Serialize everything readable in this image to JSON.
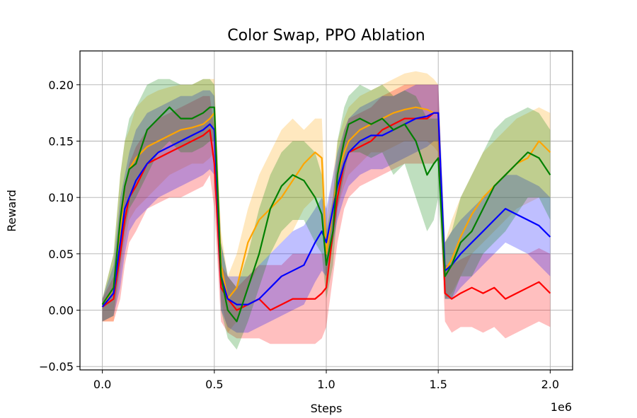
{
  "chart_data": {
    "type": "line",
    "title": "Color Swap, PPO Ablation",
    "xlabel": "Steps",
    "ylabel": "Reward",
    "x_offset_label": "1e6",
    "xlim": [
      -0.1,
      2.1
    ],
    "ylim": [
      -0.053,
      0.23
    ],
    "xticks": [
      0.0,
      0.5,
      1.0,
      1.5,
      2.0
    ],
    "xtick_labels": [
      "0.0",
      "0.5",
      "1.0",
      "1.5",
      "2.0"
    ],
    "yticks": [
      -0.05,
      0.0,
      0.05,
      0.1,
      0.15,
      0.2
    ],
    "ytick_labels": [
      "−0.05",
      "0.00",
      "0.05",
      "0.10",
      "0.15",
      "0.20"
    ],
    "grid": true,
    "legend": "none",
    "series": [
      {
        "color": "#ffa500",
        "x": [
          0.0,
          0.05,
          0.08,
          0.1,
          0.12,
          0.15,
          0.2,
          0.25,
          0.3,
          0.35,
          0.4,
          0.45,
          0.48,
          0.5,
          0.53,
          0.56,
          0.6,
          0.65,
          0.7,
          0.75,
          0.8,
          0.85,
          0.9,
          0.95,
          0.98,
          1.0,
          1.03,
          1.05,
          1.08,
          1.1,
          1.15,
          1.2,
          1.25,
          1.3,
          1.35,
          1.4,
          1.45,
          1.48,
          1.5,
          1.53,
          1.56,
          1.6,
          1.65,
          1.7,
          1.75,
          1.8,
          1.85,
          1.9,
          1.95,
          2.0
        ],
        "values": [
          0.003,
          0.02,
          0.07,
          0.11,
          0.125,
          0.135,
          0.145,
          0.15,
          0.155,
          0.16,
          0.162,
          0.165,
          0.17,
          0.175,
          0.04,
          0.01,
          0.02,
          0.06,
          0.08,
          0.09,
          0.1,
          0.115,
          0.13,
          0.14,
          0.135,
          0.05,
          0.09,
          0.12,
          0.14,
          0.15,
          0.16,
          0.165,
          0.17,
          0.175,
          0.178,
          0.18,
          0.178,
          0.175,
          0.175,
          0.035,
          0.045,
          0.065,
          0.085,
          0.1,
          0.11,
          0.12,
          0.13,
          0.135,
          0.15,
          0.14
        ],
        "upper": [
          0.01,
          0.05,
          0.12,
          0.15,
          0.16,
          0.18,
          0.19,
          0.195,
          0.198,
          0.2,
          0.2,
          0.205,
          0.205,
          0.205,
          0.07,
          0.03,
          0.05,
          0.09,
          0.12,
          0.14,
          0.16,
          0.17,
          0.16,
          0.17,
          0.17,
          0.08,
          0.12,
          0.15,
          0.17,
          0.18,
          0.19,
          0.195,
          0.2,
          0.205,
          0.21,
          0.212,
          0.21,
          0.205,
          0.2,
          0.06,
          0.08,
          0.1,
          0.12,
          0.14,
          0.15,
          0.16,
          0.17,
          0.175,
          0.18,
          0.175
        ],
        "lower": [
          -0.01,
          -0.01,
          0.03,
          0.06,
          0.08,
          0.09,
          0.1,
          0.11,
          0.12,
          0.125,
          0.13,
          0.13,
          0.135,
          0.14,
          0.01,
          -0.02,
          -0.01,
          0.02,
          0.04,
          0.05,
          0.06,
          0.07,
          0.09,
          0.1,
          0.1,
          0.02,
          0.06,
          0.09,
          0.11,
          0.12,
          0.13,
          0.14,
          0.14,
          0.145,
          0.15,
          0.15,
          0.15,
          0.145,
          0.14,
          0.01,
          0.015,
          0.03,
          0.05,
          0.06,
          0.07,
          0.08,
          0.09,
          0.095,
          0.1,
          0.1
        ]
      },
      {
        "color": "#ff0000",
        "x": [
          0.0,
          0.05,
          0.08,
          0.1,
          0.12,
          0.15,
          0.2,
          0.25,
          0.3,
          0.35,
          0.4,
          0.45,
          0.48,
          0.5,
          0.53,
          0.56,
          0.6,
          0.65,
          0.7,
          0.75,
          0.8,
          0.85,
          0.9,
          0.95,
          0.98,
          1.0,
          1.03,
          1.05,
          1.08,
          1.1,
          1.15,
          1.2,
          1.25,
          1.3,
          1.35,
          1.4,
          1.45,
          1.48,
          1.5,
          1.53,
          1.56,
          1.6,
          1.65,
          1.7,
          1.75,
          1.8,
          1.85,
          1.9,
          1.95,
          2.0
        ],
        "values": [
          0.003,
          0.01,
          0.05,
          0.08,
          0.1,
          0.11,
          0.13,
          0.135,
          0.14,
          0.145,
          0.15,
          0.155,
          0.16,
          0.13,
          0.02,
          0.01,
          0.0,
          0.005,
          0.01,
          0.0,
          0.005,
          0.01,
          0.01,
          0.01,
          0.015,
          0.02,
          0.07,
          0.1,
          0.13,
          0.14,
          0.145,
          0.15,
          0.16,
          0.165,
          0.17,
          0.17,
          0.17,
          0.175,
          0.175,
          0.015,
          0.01,
          0.015,
          0.02,
          0.015,
          0.02,
          0.01,
          0.015,
          0.02,
          0.025,
          0.015
        ],
        "upper": [
          0.01,
          0.03,
          0.09,
          0.11,
          0.13,
          0.145,
          0.16,
          0.17,
          0.175,
          0.18,
          0.185,
          0.19,
          0.19,
          0.16,
          0.04,
          0.03,
          0.02,
          0.03,
          0.04,
          0.04,
          0.04,
          0.05,
          0.05,
          0.05,
          0.05,
          0.05,
          0.1,
          0.13,
          0.16,
          0.17,
          0.175,
          0.18,
          0.19,
          0.195,
          0.2,
          0.2,
          0.2,
          0.2,
          0.2,
          0.04,
          0.04,
          0.045,
          0.05,
          0.05,
          0.05,
          0.05,
          0.05,
          0.05,
          0.055,
          0.05
        ],
        "lower": [
          -0.01,
          -0.01,
          0.01,
          0.04,
          0.06,
          0.07,
          0.09,
          0.095,
          0.1,
          0.1,
          0.105,
          0.11,
          0.12,
          0.09,
          -0.01,
          -0.02,
          -0.025,
          -0.025,
          -0.025,
          -0.03,
          -0.03,
          -0.03,
          -0.03,
          -0.03,
          -0.025,
          -0.015,
          0.03,
          0.06,
          0.09,
          0.1,
          0.11,
          0.115,
          0.12,
          0.125,
          0.13,
          0.13,
          0.13,
          0.13,
          0.135,
          -0.01,
          -0.02,
          -0.015,
          -0.015,
          -0.02,
          -0.015,
          -0.025,
          -0.02,
          -0.015,
          -0.01,
          -0.015
        ]
      },
      {
        "color": "#0000ff",
        "x": [
          0.0,
          0.05,
          0.08,
          0.1,
          0.12,
          0.15,
          0.2,
          0.25,
          0.3,
          0.35,
          0.4,
          0.45,
          0.48,
          0.5,
          0.53,
          0.56,
          0.6,
          0.65,
          0.7,
          0.75,
          0.8,
          0.85,
          0.9,
          0.95,
          0.98,
          1.0,
          1.03,
          1.05,
          1.08,
          1.1,
          1.15,
          1.2,
          1.25,
          1.3,
          1.35,
          1.4,
          1.45,
          1.48,
          1.5,
          1.53,
          1.56,
          1.6,
          1.65,
          1.7,
          1.75,
          1.8,
          1.85,
          1.9,
          1.95,
          2.0
        ],
        "values": [
          0.003,
          0.015,
          0.06,
          0.09,
          0.1,
          0.115,
          0.13,
          0.14,
          0.145,
          0.15,
          0.155,
          0.16,
          0.165,
          0.16,
          0.03,
          0.01,
          0.005,
          0.005,
          0.01,
          0.02,
          0.03,
          0.035,
          0.04,
          0.06,
          0.07,
          0.06,
          0.09,
          0.11,
          0.13,
          0.14,
          0.15,
          0.155,
          0.155,
          0.16,
          0.165,
          0.17,
          0.172,
          0.175,
          0.175,
          0.035,
          0.04,
          0.05,
          0.06,
          0.07,
          0.08,
          0.09,
          0.085,
          0.08,
          0.075,
          0.065
        ],
        "upper": [
          0.01,
          0.04,
          0.1,
          0.12,
          0.14,
          0.16,
          0.175,
          0.18,
          0.185,
          0.19,
          0.19,
          0.195,
          0.195,
          0.19,
          0.06,
          0.03,
          0.03,
          0.03,
          0.04,
          0.05,
          0.06,
          0.07,
          0.075,
          0.09,
          0.1,
          0.09,
          0.12,
          0.14,
          0.16,
          0.17,
          0.18,
          0.185,
          0.19,
          0.19,
          0.195,
          0.2,
          0.2,
          0.2,
          0.2,
          0.06,
          0.07,
          0.08,
          0.09,
          0.1,
          0.11,
          0.12,
          0.12,
          0.115,
          0.11,
          0.1
        ],
        "lower": [
          -0.01,
          -0.005,
          0.02,
          0.05,
          0.07,
          0.08,
          0.09,
          0.1,
          0.105,
          0.11,
          0.115,
          0.12,
          0.125,
          0.12,
          0.0,
          -0.015,
          -0.02,
          -0.02,
          -0.015,
          -0.01,
          -0.005,
          0.0,
          0.005,
          0.025,
          0.035,
          0.03,
          0.06,
          0.08,
          0.1,
          0.11,
          0.12,
          0.125,
          0.125,
          0.13,
          0.135,
          0.14,
          0.145,
          0.15,
          0.15,
          0.01,
          0.01,
          0.02,
          0.03,
          0.04,
          0.05,
          0.06,
          0.055,
          0.05,
          0.04,
          0.03
        ]
      },
      {
        "color": "#008000",
        "x": [
          0.0,
          0.05,
          0.08,
          0.1,
          0.12,
          0.15,
          0.2,
          0.25,
          0.3,
          0.35,
          0.4,
          0.45,
          0.48,
          0.5,
          0.53,
          0.56,
          0.6,
          0.65,
          0.7,
          0.75,
          0.8,
          0.85,
          0.9,
          0.95,
          0.98,
          1.0,
          1.03,
          1.05,
          1.08,
          1.1,
          1.15,
          1.2,
          1.25,
          1.3,
          1.35,
          1.4,
          1.45,
          1.48,
          1.5,
          1.53,
          1.56,
          1.6,
          1.65,
          1.7,
          1.75,
          1.8,
          1.85,
          1.9,
          1.95,
          2.0
        ],
        "values": [
          0.005,
          0.02,
          0.08,
          0.11,
          0.125,
          0.13,
          0.16,
          0.17,
          0.18,
          0.17,
          0.17,
          0.175,
          0.18,
          0.18,
          0.03,
          0.0,
          -0.01,
          0.02,
          0.05,
          0.09,
          0.11,
          0.12,
          0.115,
          0.1,
          0.085,
          0.04,
          0.07,
          0.12,
          0.15,
          0.165,
          0.17,
          0.165,
          0.17,
          0.16,
          0.165,
          0.15,
          0.12,
          0.13,
          0.135,
          0.03,
          0.04,
          0.06,
          0.07,
          0.09,
          0.11,
          0.12,
          0.13,
          0.14,
          0.135,
          0.12
        ],
        "upper": [
          0.01,
          0.05,
          0.12,
          0.15,
          0.17,
          0.18,
          0.2,
          0.205,
          0.205,
          0.2,
          0.2,
          0.205,
          0.205,
          0.2,
          0.06,
          0.03,
          0.02,
          0.05,
          0.09,
          0.12,
          0.14,
          0.15,
          0.15,
          0.14,
          0.12,
          0.07,
          0.1,
          0.15,
          0.18,
          0.19,
          0.2,
          0.195,
          0.2,
          0.19,
          0.195,
          0.19,
          0.17,
          0.17,
          0.17,
          0.06,
          0.07,
          0.1,
          0.12,
          0.14,
          0.16,
          0.17,
          0.175,
          0.18,
          0.175,
          0.16
        ],
        "lower": [
          -0.01,
          -0.005,
          0.04,
          0.07,
          0.09,
          0.1,
          0.12,
          0.14,
          0.15,
          0.14,
          0.14,
          0.145,
          0.15,
          0.15,
          0.0,
          -0.025,
          -0.035,
          -0.01,
          0.02,
          0.05,
          0.07,
          0.08,
          0.08,
          0.06,
          0.05,
          0.01,
          0.04,
          0.09,
          0.12,
          0.14,
          0.14,
          0.135,
          0.14,
          0.12,
          0.13,
          0.1,
          0.07,
          0.08,
          0.1,
          0.01,
          0.01,
          0.03,
          0.03,
          0.05,
          0.06,
          0.07,
          0.085,
          0.1,
          0.1,
          0.08
        ]
      }
    ]
  }
}
